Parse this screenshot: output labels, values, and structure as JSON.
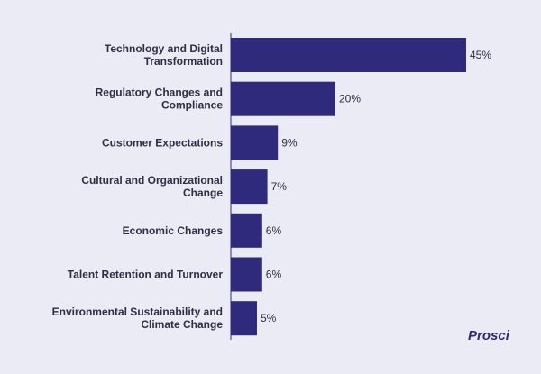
{
  "chart_data": {
    "type": "bar",
    "orientation": "horizontal",
    "categories": [
      [
        "Technology and Digital",
        "Transformation"
      ],
      [
        "Regulatory Changes and",
        "Compliance"
      ],
      [
        "Customer Expectations"
      ],
      [
        "Cultural and Organizational",
        "Change"
      ],
      [
        "Economic Changes"
      ],
      [
        "Talent Retention and Turnover"
      ],
      [
        "Environmental Sustainability and",
        "Climate Change"
      ]
    ],
    "values": [
      45,
      20,
      9,
      7,
      6,
      6,
      5
    ],
    "value_labels": [
      "45%",
      "20%",
      "9%",
      "7%",
      "6%",
      "6%",
      "5%"
    ],
    "title": "",
    "xlabel": "",
    "ylabel": "",
    "xlim": [
      0,
      45
    ],
    "grid": false,
    "legend": "none",
    "bar_color": "#2f2a7c",
    "background_color": "#ebebf5",
    "text_color": "#2e2e44"
  },
  "branding": {
    "logo_text": "Prosci"
  }
}
